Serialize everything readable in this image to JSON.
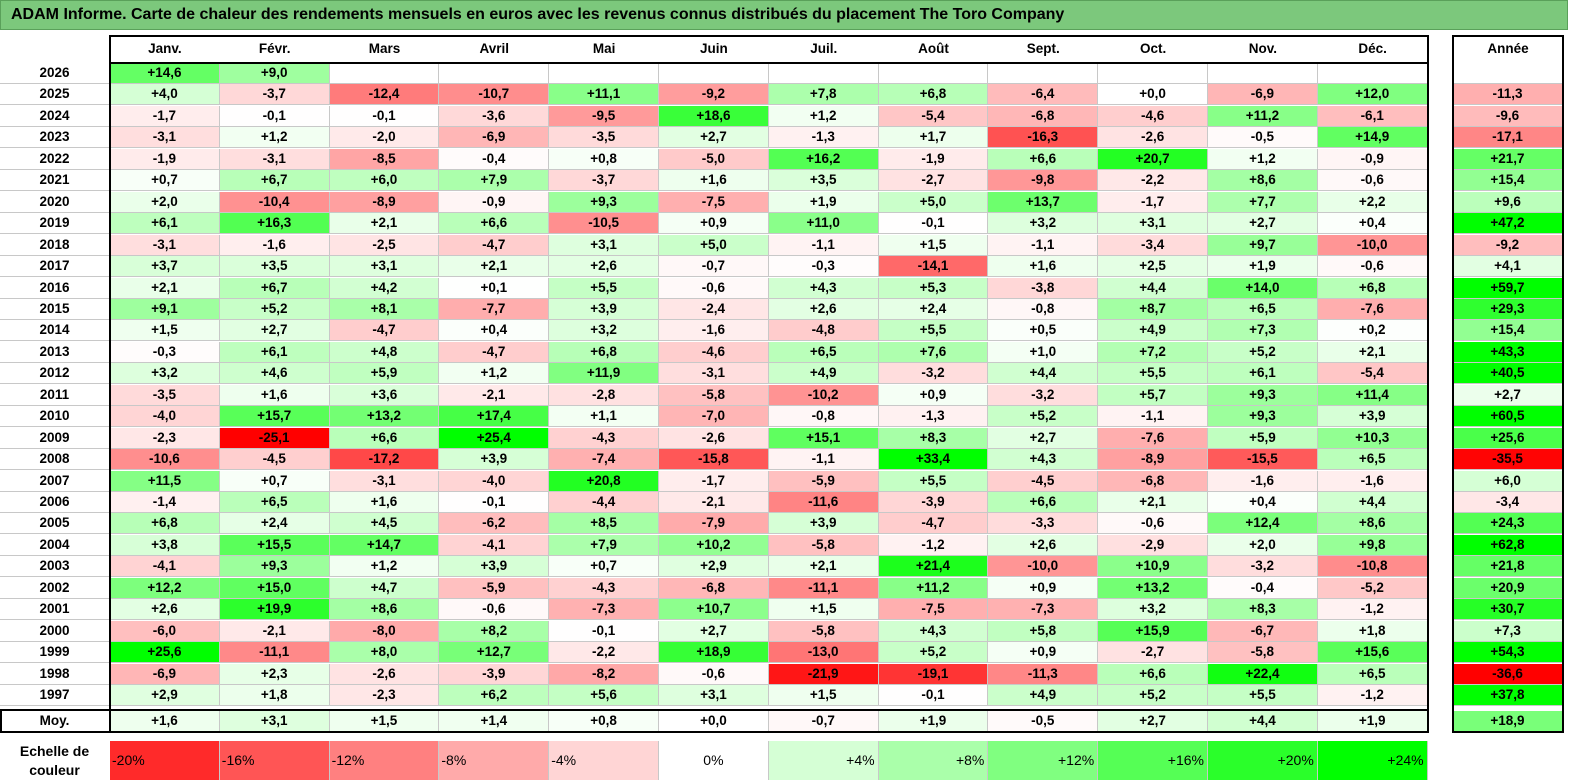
{
  "title": "ADAM Informe. Carte de chaleur des rendements mensuels en euros avec les revenus connus distribués du placement The Toro Company",
  "chart_data": {
    "type": "heatmap",
    "title": "ADAM Informe. Carte de chaleur des rendements mensuels en euros avec les revenus connus distribués du placement The Toro Company",
    "columns": [
      "Janv.",
      "Févr.",
      "Mars",
      "Avril",
      "Mai",
      "Juin",
      "Juil.",
      "Août",
      "Sept.",
      "Oct.",
      "Nov.",
      "Déc."
    ],
    "year_header": "Année",
    "rows": [
      {
        "label": "2026",
        "values": [
          "+14,6",
          "+9,0",
          "",
          "",
          "",
          "",
          "",
          "",
          "",
          "",
          "",
          ""
        ],
        "year": ""
      },
      {
        "label": "2025",
        "values": [
          "+4,0",
          "-3,7",
          "-12,4",
          "-10,7",
          "+11,1",
          "-9,2",
          "+7,8",
          "+6,8",
          "-6,4",
          "+0,0",
          "-6,9",
          "+12,0"
        ],
        "year": "-11,3"
      },
      {
        "label": "2024",
        "values": [
          "-1,7",
          "-0,1",
          "-0,1",
          "-3,6",
          "-9,5",
          "+18,6",
          "+1,2",
          "-5,4",
          "-6,8",
          "-4,6",
          "+11,2",
          "-6,1"
        ],
        "year": "-9,6"
      },
      {
        "label": "2023",
        "values": [
          "-3,1",
          "+1,2",
          "-2,0",
          "-6,9",
          "-3,5",
          "+2,7",
          "-1,3",
          "+1,7",
          "-16,3",
          "-2,6",
          "-0,5",
          "+14,9"
        ],
        "year": "-17,1"
      },
      {
        "label": "2022",
        "values": [
          "-1,9",
          "-3,1",
          "-8,5",
          "-0,4",
          "+0,8",
          "-5,0",
          "+16,2",
          "-1,9",
          "+6,6",
          "+20,7",
          "+1,2",
          "-0,9"
        ],
        "year": "+21,7"
      },
      {
        "label": "2021",
        "values": [
          "+0,7",
          "+6,7",
          "+6,0",
          "+7,9",
          "-3,7",
          "+1,6",
          "+3,5",
          "-2,7",
          "-9,8",
          "-2,2",
          "+8,6",
          "-0,6"
        ],
        "year": "+15,4"
      },
      {
        "label": "2020",
        "values": [
          "+2,0",
          "-10,4",
          "-8,9",
          "-0,9",
          "+9,3",
          "-7,5",
          "+1,9",
          "+5,0",
          "+13,7",
          "-1,7",
          "+7,7",
          "+2,2"
        ],
        "year": "+9,6"
      },
      {
        "label": "2019",
        "values": [
          "+6,1",
          "+16,3",
          "+2,1",
          "+6,6",
          "-10,5",
          "+0,9",
          "+11,0",
          "-0,1",
          "+3,2",
          "+3,1",
          "+2,7",
          "+0,4"
        ],
        "year": "+47,2"
      },
      {
        "label": "2018",
        "values": [
          "-3,1",
          "-1,6",
          "-2,5",
          "-4,7",
          "+3,1",
          "+5,0",
          "-1,1",
          "+1,5",
          "-1,1",
          "-3,4",
          "+9,7",
          "-10,0"
        ],
        "year": "-9,2"
      },
      {
        "label": "2017",
        "values": [
          "+3,7",
          "+3,5",
          "+3,1",
          "+2,1",
          "+2,6",
          "-0,7",
          "-0,3",
          "-14,1",
          "+1,6",
          "+2,5",
          "+1,9",
          "-0,6"
        ],
        "year": "+4,1"
      },
      {
        "label": "2016",
        "values": [
          "+2,1",
          "+6,7",
          "+4,2",
          "+0,1",
          "+5,5",
          "-0,6",
          "+4,3",
          "+5,3",
          "-3,8",
          "+4,4",
          "+14,0",
          "+6,8"
        ],
        "year": "+59,7"
      },
      {
        "label": "2015",
        "values": [
          "+9,1",
          "+5,2",
          "+8,1",
          "-7,7",
          "+3,9",
          "-2,4",
          "+2,6",
          "+2,4",
          "-0,8",
          "+8,7",
          "+6,5",
          "-7,6"
        ],
        "year": "+29,3"
      },
      {
        "label": "2014",
        "values": [
          "+1,5",
          "+2,7",
          "-4,7",
          "+0,4",
          "+3,2",
          "-1,6",
          "-4,8",
          "+5,5",
          "+0,5",
          "+4,9",
          "+7,3",
          "+0,2"
        ],
        "year": "+15,4"
      },
      {
        "label": "2013",
        "values": [
          "-0,3",
          "+6,1",
          "+4,8",
          "-4,7",
          "+6,8",
          "-4,6",
          "+6,5",
          "+7,6",
          "+1,0",
          "+7,2",
          "+5,2",
          "+2,1"
        ],
        "year": "+43,3"
      },
      {
        "label": "2012",
        "values": [
          "+3,2",
          "+4,6",
          "+5,9",
          "+1,2",
          "+11,9",
          "-3,1",
          "+4,9",
          "-3,2",
          "+4,4",
          "+5,5",
          "+6,1",
          "-5,4"
        ],
        "year": "+40,5"
      },
      {
        "label": "2011",
        "values": [
          "-3,5",
          "+1,6",
          "+3,6",
          "-2,1",
          "-2,8",
          "-5,8",
          "-10,2",
          "+0,9",
          "-3,2",
          "+5,7",
          "+9,3",
          "+11,4"
        ],
        "year": "+2,7"
      },
      {
        "label": "2010",
        "values": [
          "-4,0",
          "+15,7",
          "+13,2",
          "+17,4",
          "+1,1",
          "-7,0",
          "-0,8",
          "-1,3",
          "+5,2",
          "-1,1",
          "+9,3",
          "+3,9"
        ],
        "year": "+60,5"
      },
      {
        "label": "2009",
        "values": [
          "-2,3",
          "-25,1",
          "+6,6",
          "+25,4",
          "-4,3",
          "-2,6",
          "+15,1",
          "+8,3",
          "+2,7",
          "-7,6",
          "+5,9",
          "+10,3"
        ],
        "year": "+25,6"
      },
      {
        "label": "2008",
        "values": [
          "-10,6",
          "-4,5",
          "-17,2",
          "+3,9",
          "-7,4",
          "-15,8",
          "-1,1",
          "+33,4",
          "+4,3",
          "-8,9",
          "-15,5",
          "+6,5"
        ],
        "year": "-35,5"
      },
      {
        "label": "2007",
        "values": [
          "+11,5",
          "+0,7",
          "-3,1",
          "-4,0",
          "+20,8",
          "-1,7",
          "-5,9",
          "+5,5",
          "-4,5",
          "-6,8",
          "-1,6",
          "-1,6"
        ],
        "year": "+6,0"
      },
      {
        "label": "2006",
        "values": [
          "-1,4",
          "+6,5",
          "+1,6",
          "-0,1",
          "-4,4",
          "-2,1",
          "-11,6",
          "-3,9",
          "+6,6",
          "+2,1",
          "+0,4",
          "+4,4"
        ],
        "year": "-3,4"
      },
      {
        "label": "2005",
        "values": [
          "+6,8",
          "+2,4",
          "+4,5",
          "-6,2",
          "+8,5",
          "-7,9",
          "+3,9",
          "-4,7",
          "-3,3",
          "-0,6",
          "+12,4",
          "+8,6"
        ],
        "year": "+24,3"
      },
      {
        "label": "2004",
        "values": [
          "+3,8",
          "+15,5",
          "+14,7",
          "-4,1",
          "+7,9",
          "+10,2",
          "-5,8",
          "-1,2",
          "+2,6",
          "-2,9",
          "+2,0",
          "+9,8"
        ],
        "year": "+62,8"
      },
      {
        "label": "2003",
        "values": [
          "-4,1",
          "+9,3",
          "+1,2",
          "+3,9",
          "+0,7",
          "+2,9",
          "+2,1",
          "+21,4",
          "-10,0",
          "+10,9",
          "-3,2",
          "-10,8"
        ],
        "year": "+21,8"
      },
      {
        "label": "2002",
        "values": [
          "+12,2",
          "+15,0",
          "+4,7",
          "-5,9",
          "-4,3",
          "-6,8",
          "-11,1",
          "+11,2",
          "+0,9",
          "+13,2",
          "-0,4",
          "-5,2"
        ],
        "year": "+20,9"
      },
      {
        "label": "2001",
        "values": [
          "+2,6",
          "+19,9",
          "+8,6",
          "-0,6",
          "-7,3",
          "+10,7",
          "+1,5",
          "-7,5",
          "-7,3",
          "+3,2",
          "+8,3",
          "-1,2"
        ],
        "year": "+30,7"
      },
      {
        "label": "2000",
        "values": [
          "-6,0",
          "-2,1",
          "-8,0",
          "+8,2",
          "-0,1",
          "+2,7",
          "-5,8",
          "+4,3",
          "+5,8",
          "+15,9",
          "-6,7",
          "+1,8"
        ],
        "year": "+7,3"
      },
      {
        "label": "1999",
        "values": [
          "+25,6",
          "-11,1",
          "+8,0",
          "+12,7",
          "-2,2",
          "+18,9",
          "-13,0",
          "+5,2",
          "+0,9",
          "-2,7",
          "-5,8",
          "+15,6"
        ],
        "year": "+54,3"
      },
      {
        "label": "1998",
        "values": [
          "-6,9",
          "+2,3",
          "-2,6",
          "-3,9",
          "-8,2",
          "-0,6",
          "-21,9",
          "-19,1",
          "-11,3",
          "+6,6",
          "+22,4",
          "+6,5"
        ],
        "year": "-36,6"
      },
      {
        "label": "1997",
        "values": [
          "+2,9",
          "+1,8",
          "-2,3",
          "+6,2",
          "+5,6",
          "+3,1",
          "+1,5",
          "-0,1",
          "+4,9",
          "+5,2",
          "+5,5",
          "-1,2"
        ],
        "year": "+37,8"
      }
    ],
    "average": {
      "label": "Moy.",
      "values": [
        "+1,6",
        "+3,1",
        "+1,5",
        "+1,4",
        "+0,8",
        "+0,0",
        "-0,7",
        "+1,9",
        "-0,5",
        "+2,7",
        "+4,4",
        "+1,9"
      ],
      "year": "+18,9"
    },
    "scale": {
      "label_line1": "Echelle de",
      "label_line2": "couleur",
      "steps": [
        "-20%",
        "-16%",
        "-12%",
        "-8%",
        "-4%",
        "0%",
        "+4%",
        "+8%",
        "+12%",
        "+16%",
        "+20%",
        "+24%"
      ],
      "values": [
        -20,
        -16,
        -12,
        -8,
        -4,
        0,
        4,
        8,
        12,
        16,
        20,
        24
      ]
    },
    "colors": {
      "negative": "#ff0000",
      "zero": "#ffffff",
      "positive": "#00ff00",
      "title_bg": "#7cc87c"
    }
  }
}
